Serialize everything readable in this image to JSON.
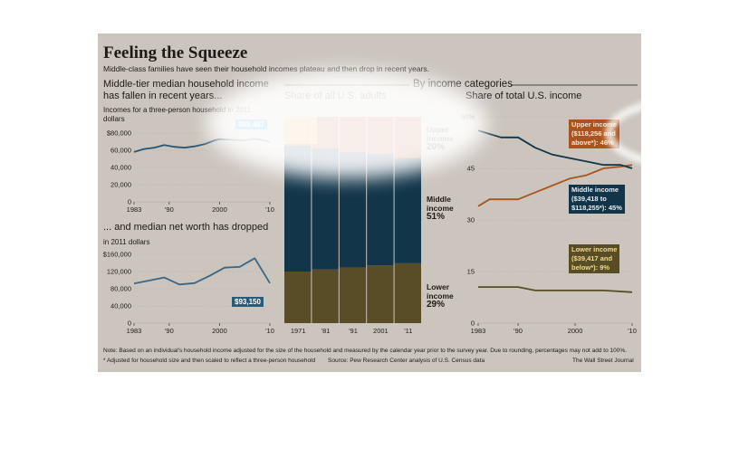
{
  "header": {
    "title": "Feeling the Squeeze",
    "subtitle": "Middle-class families have seen their household incomes plateau and then drop in recent years."
  },
  "left_top": {
    "heading_line1": "Middle-tier median household income",
    "heading_line2": "has fallen in recent years...",
    "unit_line1": "Incomes for a three-person household in 2011",
    "unit_line2": "dollars",
    "callout": "$69,487"
  },
  "left_bottom": {
    "heading": "... and median net worth has dropped",
    "unit": "in 2011 dollars",
    "callout": "$93,150"
  },
  "middle": {
    "section_heading": "By income categories",
    "heading": "Share of all U.S. adults",
    "upper_label": [
      "Upper",
      "income",
      "20%"
    ],
    "middle_label": [
      "Middle",
      "income",
      "51%"
    ],
    "lower_label": [
      "Lower",
      "income",
      "29%"
    ]
  },
  "right": {
    "heading": "Share of total U.S. income",
    "upper_label": [
      "Upper income",
      "($118,256 and",
      "above*): 46%"
    ],
    "middle_label": [
      "Middle income",
      "($39,418 to",
      "$118,255*): 45%"
    ],
    "lower_label": [
      "Lower income",
      "($39,417 and",
      "below*): 9%"
    ]
  },
  "footer": {
    "note": "Note: Based on an individual's household income adjusted for the size of the household and measured by the calendar year prior to the survey year. Due to rounding, percentages may not add to 100%.",
    "footnote": "* Adjusted for household size and then scaled to reflect a three-person household",
    "source": "Source: Pew Research Center analysis of U.S. Census data",
    "credit": "The Wall Street Journal"
  },
  "colors": {
    "background": "#cbc5bd",
    "upper": "#a9541f",
    "middle": "#12354a",
    "lower": "#584d26",
    "income_line": "#2b5572",
    "networth_line": "#3a6788",
    "upper_bright": "#f5b547",
    "callout_blue": "#1b8fd0"
  },
  "chart_data": [
    {
      "type": "line",
      "title": "Middle-tier median household income",
      "ylabel": "Incomes for a three-person household in 2011 dollars",
      "x_ticks": [
        "1983",
        "'90",
        "2000",
        "'10"
      ],
      "y_ticks": [
        "$80,000",
        "60,000",
        "40,000",
        "20,000",
        "0"
      ],
      "ylim": [
        0,
        80000
      ],
      "series": [
        {
          "x": [
            1983,
            1985,
            1987,
            1989,
            1991,
            1993,
            1995,
            1997,
            1999,
            2000,
            2001,
            2003,
            2005,
            2007,
            2009,
            2010
          ],
          "values": [
            58000,
            61500,
            63000,
            66000,
            64000,
            63000,
            64500,
            67000,
            71500,
            73000,
            72500,
            72000,
            71500,
            73500,
            71000,
            69487
          ]
        }
      ],
      "annotation": "$69,487"
    },
    {
      "type": "line",
      "title": "... and median net worth has dropped",
      "ylabel": "in 2011 dollars",
      "x_ticks": [
        "1983",
        "'90",
        "2000",
        "'10"
      ],
      "y_ticks": [
        "$160,000",
        "120,000",
        "80,000",
        "40,000",
        "0"
      ],
      "ylim": [
        0,
        160000
      ],
      "series": [
        {
          "x": [
            1983,
            1989,
            1992,
            1995,
            1998,
            2001,
            2004,
            2007,
            2010
          ],
          "values": [
            92000,
            106000,
            90000,
            93000,
            110000,
            129000,
            131000,
            151000,
            93150
          ]
        }
      ],
      "annotation": "$93,150"
    },
    {
      "type": "area",
      "title": "Share of all U.S. adults",
      "x_ticks": [
        "1971",
        "'81",
        "'91",
        "2001",
        "'11"
      ],
      "x": [
        1971,
        1981,
        1991,
        2001,
        2011
      ],
      "ylim": [
        0,
        100
      ],
      "series": [
        {
          "name": "Lower income",
          "values": [
            25,
            26,
            27,
            28,
            29
          ]
        },
        {
          "name": "Middle income",
          "values": [
            61,
            59,
            56,
            54,
            51
          ]
        },
        {
          "name": "Upper income",
          "values": [
            14,
            15,
            17,
            18,
            20
          ]
        }
      ]
    },
    {
      "type": "line",
      "title": "Share of total U.S. income",
      "x_ticks": [
        "1983",
        "'90",
        "2000",
        "'10"
      ],
      "y_ticks": [
        "60%",
        "45",
        "30",
        "15",
        "0"
      ],
      "ylim": [
        0,
        60
      ],
      "series": [
        {
          "name": "Upper income",
          "x": [
            1983,
            1985,
            1990,
            1993,
            1996,
            1999,
            2002,
            2005,
            2008,
            2010
          ],
          "values": [
            34,
            36,
            36,
            38,
            40,
            42,
            43,
            45,
            45.5,
            46
          ]
        },
        {
          "name": "Middle income",
          "x": [
            1983,
            1985,
            1987,
            1990,
            1993,
            1996,
            1999,
            2002,
            2005,
            2008,
            2010
          ],
          "values": [
            56,
            55,
            54,
            54,
            51,
            49,
            48,
            47,
            46,
            46,
            45
          ]
        },
        {
          "name": "Lower income",
          "x": [
            1983,
            1990,
            1993,
            1996,
            2000,
            2005,
            2010
          ],
          "values": [
            10.5,
            10.5,
            9.5,
            9.5,
            9.5,
            9.5,
            9
          ]
        }
      ]
    }
  ]
}
